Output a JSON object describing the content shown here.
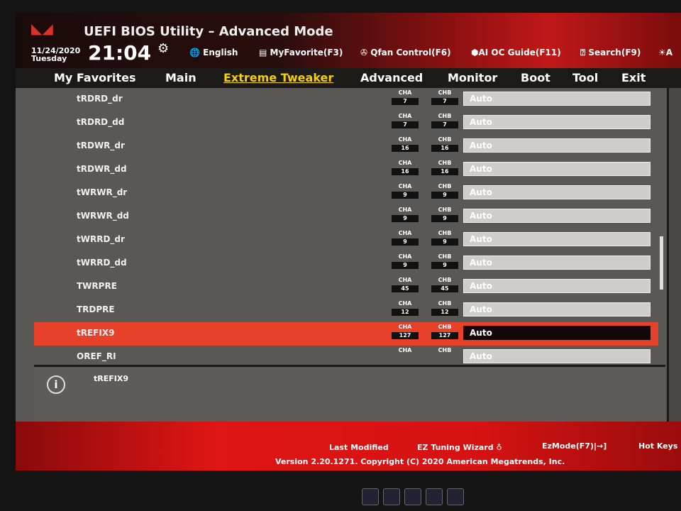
{
  "header": {
    "title": "UEFI BIOS Utility – Advanced Mode",
    "date": "11/24/2020",
    "day": "Tuesday",
    "time": "21:04",
    "tools": [
      {
        "icon": "globe-icon",
        "label": "English"
      },
      {
        "icon": "favorite-icon",
        "label": "MyFavorite(F3)"
      },
      {
        "icon": "fan-icon",
        "label": "Qfan Control(F6)"
      },
      {
        "icon": "ai-oc-icon",
        "label": "AI OC Guide(F11)"
      },
      {
        "icon": "search-icon",
        "label": "Search(F9)"
      },
      {
        "icon": "aura-icon",
        "label": "A"
      }
    ]
  },
  "nav": {
    "items": [
      "My Favorites",
      "Main",
      "Extreme Tweaker",
      "Advanced",
      "Monitor",
      "Boot",
      "Tool",
      "Exit"
    ],
    "active": "Extreme Tweaker"
  },
  "channel_labels": {
    "a": "CHA",
    "b": "CHB"
  },
  "rows": [
    {
      "label": "tRDRD_dr",
      "cha": "7",
      "chb": "7",
      "value": "Auto"
    },
    {
      "label": "tRDRD_dd",
      "cha": "7",
      "chb": "7",
      "value": "Auto"
    },
    {
      "label": "tRDWR_dr",
      "cha": "16",
      "chb": "16",
      "value": "Auto"
    },
    {
      "label": "tRDWR_dd",
      "cha": "16",
      "chb": "16",
      "value": "Auto"
    },
    {
      "label": "tWRWR_dr",
      "cha": "9",
      "chb": "9",
      "value": "Auto"
    },
    {
      "label": "tWRWR_dd",
      "cha": "9",
      "chb": "9",
      "value": "Auto"
    },
    {
      "label": "tWRRD_dr",
      "cha": "9",
      "chb": "9",
      "value": "Auto"
    },
    {
      "label": "tWRRD_dd",
      "cha": "9",
      "chb": "9",
      "value": "Auto"
    },
    {
      "label": "TWRPRE",
      "cha": "45",
      "chb": "45",
      "value": "Auto"
    },
    {
      "label": "TRDPRE",
      "cha": "12",
      "chb": "12",
      "value": "Auto"
    },
    {
      "label": "tREFIX9",
      "cha": "127",
      "chb": "127",
      "value": "Auto",
      "selected": true
    },
    {
      "label": "OREF_RI",
      "cha": "",
      "chb": "",
      "value": "Auto"
    }
  ],
  "info": {
    "text": "tREFIX9"
  },
  "footer": {
    "last_modified": "Last Modified",
    "ez_tuning": "EZ Tuning Wizard",
    "ezmode": "EzMode(F7)|→]",
    "hotkeys": "Hot Keys",
    "version": "Version 2.20.1271. Copyright (C) 2020 American Megatrends, Inc."
  },
  "colors": {
    "accent": "#f5d000",
    "selected_row": "#e8412a",
    "brand_red": "#d51212"
  }
}
